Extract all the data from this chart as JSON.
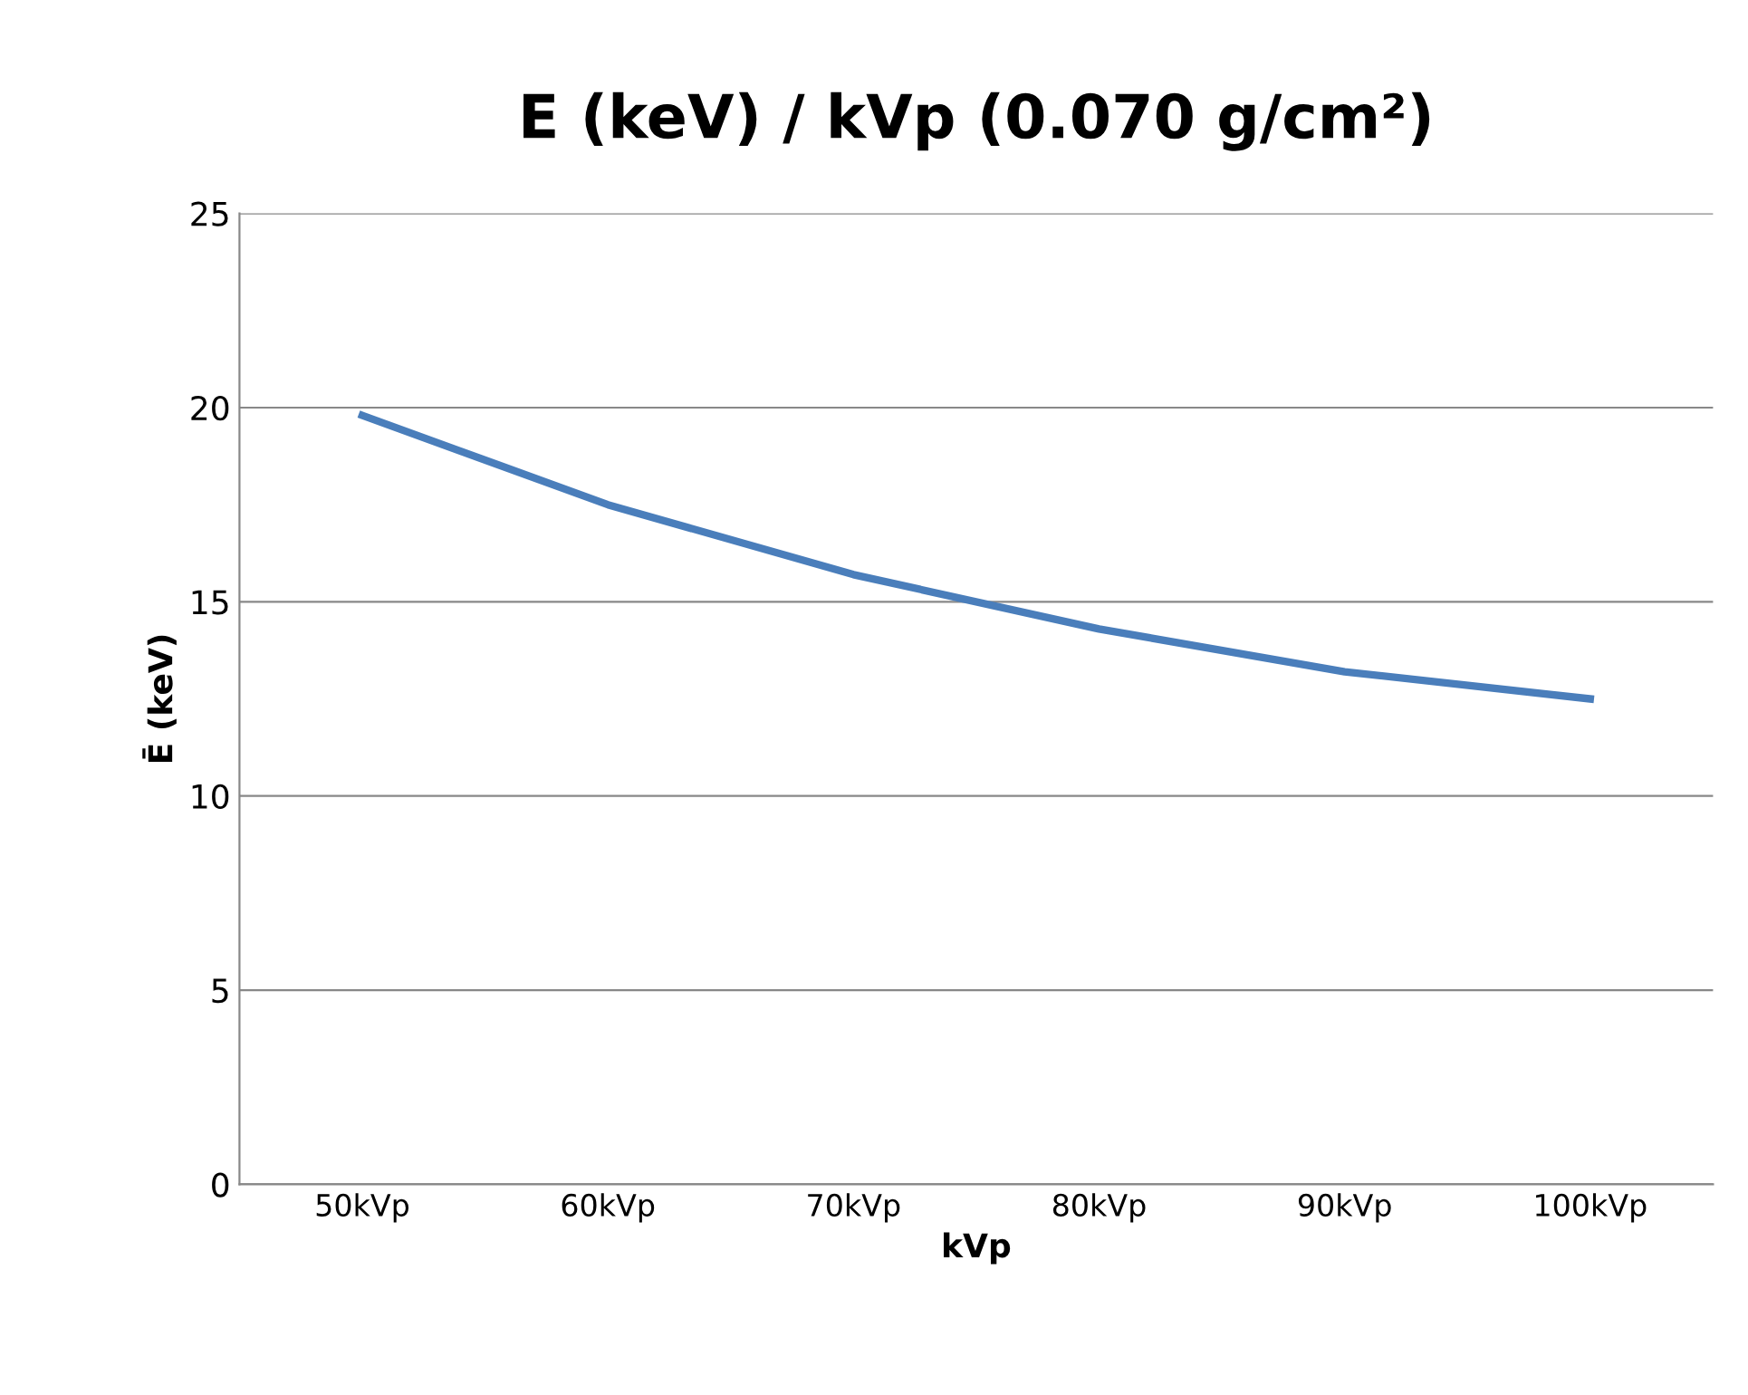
{
  "chart_data": {
    "type": "line",
    "title": "E (keV) / kVp (0.070 g/cm²)",
    "xlabel": "kVp",
    "ylabel": "Ē (keV)",
    "categories": [
      "50kVp",
      "60kVp",
      "70kVp",
      "80kVp",
      "90kVp",
      "100kVp"
    ],
    "series": [
      {
        "color": "#4a7ebb",
        "values": [
          19.8,
          17.5,
          15.7,
          14.3,
          13.2,
          12.5
        ]
      }
    ],
    "ylim": [
      0,
      25
    ],
    "yticks": [
      0,
      5,
      10,
      15,
      20,
      25
    ],
    "grid": "y",
    "legend": false,
    "marker": "none",
    "line_style": "solid"
  }
}
